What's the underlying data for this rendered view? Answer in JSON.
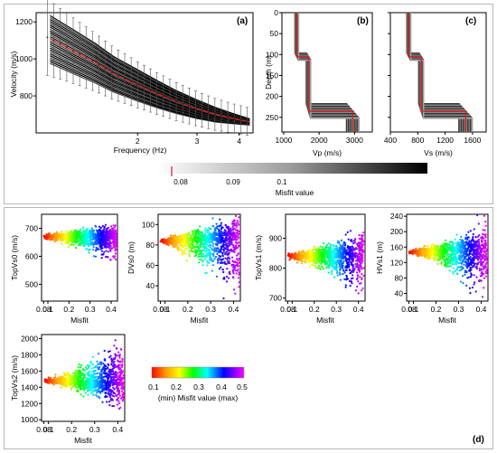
{
  "panel_a": {
    "tag": "(a)",
    "xlabel": "Frequency (Hz)",
    "ylabel": "Velocity (m/s)",
    "xticks": [
      "2",
      "3",
      "4"
    ],
    "yticks": [
      "1200",
      "1000",
      "800"
    ]
  },
  "panel_b": {
    "tag": "(b)",
    "xlabel": "Vp (m/s)",
    "ylabel": "Depth (m)",
    "xticks": [
      "1000",
      "2000",
      "3000"
    ],
    "yticks": [
      "0",
      "50",
      "100",
      "150",
      "200",
      "250"
    ]
  },
  "panel_c": {
    "tag": "(c)",
    "xlabel": "Vs (m/s)",
    "xticks": [
      "400",
      "800",
      "1200",
      "1600"
    ]
  },
  "misfit_bar": {
    "ticks": [
      "0.08",
      "0.09",
      "0.1"
    ],
    "label": "Misfit value"
  },
  "scatter_tag": "(d)",
  "color_bar": {
    "ticks": [
      "0.1",
      "0.2",
      "0.3",
      "0.4",
      "0.5"
    ],
    "label": "(min) Misfit value (max)"
  },
  "chart_data": [
    {
      "type": "line",
      "panel": "a",
      "xlabel": "Frequency (Hz)",
      "ylabel": "Velocity (m/s)",
      "x": [
        1.1,
        1.3,
        1.5,
        1.7,
        2.0,
        2.3,
        2.6,
        3.0,
        3.4,
        3.8,
        4.3
      ],
      "series": [
        {
          "values": [
            1110,
            1040,
            980,
            920,
            860,
            810,
            770,
            730,
            700,
            680,
            660
          ]
        }
      ],
      "xlim": [
        1.0,
        4.4
      ],
      "ylim": [
        600,
        1250
      ],
      "xscale": "log"
    },
    {
      "type": "line",
      "panel": "b",
      "xlabel": "Vp (m/s)",
      "ylabel": "Depth (m)",
      "xlim": [
        950,
        3500
      ],
      "ylim": [
        0,
        285
      ],
      "y_inverted": true,
      "profile_depth": [
        0,
        105,
        105,
        235,
        235,
        285
      ],
      "profile_vp": [
        1370,
        1370,
        1700,
        1700,
        2950,
        2950
      ]
    },
    {
      "type": "line",
      "panel": "c",
      "xlabel": "Vs (m/s)",
      "ylabel": "Depth (m)",
      "xlim": [
        400,
        1800
      ],
      "ylim": [
        0,
        285
      ],
      "y_inverted": true,
      "profile_depth": [
        0,
        105,
        105,
        235,
        235,
        285
      ],
      "profile_vs": [
        670,
        670,
        850,
        850,
        1500,
        1500
      ]
    },
    {
      "type": "scatter",
      "panel": "TopVs0",
      "xlabel": "Misfit",
      "ylabel": "TopVs0 (m/s)",
      "xticks": [
        "0.08",
        "0.1",
        "0.2",
        "0.3",
        "0.4"
      ],
      "yticks": [
        "500",
        "600",
        "700"
      ],
      "xlim": [
        0.07,
        0.43
      ],
      "ylim": [
        440,
        750
      ],
      "best": 670,
      "spread_low": [
        10,
        80
      ],
      "spread_high": [
        10,
        40
      ]
    },
    {
      "type": "scatter",
      "panel": "DVs0",
      "xlabel": "Misfit",
      "ylabel": "DVs0 (m)",
      "xticks": [
        "0.08",
        "0.1",
        "0.2",
        "0.3",
        "0.4"
      ],
      "yticks": [
        "40",
        "60",
        "80",
        "100"
      ],
      "xlim": [
        0.07,
        0.43
      ],
      "ylim": [
        25,
        110
      ],
      "best": 84,
      "spread_low": [
        3,
        55
      ],
      "spread_high": [
        3,
        24
      ]
    },
    {
      "type": "scatter",
      "panel": "TopVs1",
      "xlabel": "Misfit",
      "ylabel": "TopVs1 (m/s)",
      "xticks": [
        "0.08",
        "0.1",
        "0.2",
        "0.3",
        "0.4"
      ],
      "yticks": [
        "700",
        "800",
        "900"
      ],
      "xlim": [
        0.07,
        0.43
      ],
      "ylim": [
        690,
        980
      ],
      "best": 840,
      "spread_low": [
        10,
        120
      ],
      "spread_high": [
        10,
        80
      ]
    },
    {
      "type": "scatter",
      "panel": "HVs1",
      "xlabel": "Misfit",
      "ylabel": "HVs1 (m)",
      "xticks": [
        "0.08",
        "0.1",
        "0.2",
        "0.3",
        "0.4"
      ],
      "yticks": [
        "40",
        "80",
        "120",
        "160",
        "200",
        "240"
      ],
      "xlim": [
        0.07,
        0.43
      ],
      "ylim": [
        20,
        245
      ],
      "best": 148,
      "spread_low": [
        5,
        110
      ],
      "spread_high": [
        5,
        65
      ]
    },
    {
      "type": "scatter",
      "panel": "TopVs2",
      "xlabel": "Misfit",
      "ylabel": "TopVs2 (m/s)",
      "xticks": [
        "0.08",
        "0.1",
        "0.2",
        "0.3",
        "0.4"
      ],
      "yticks": [
        "1000",
        "1200",
        "1400",
        "1600",
        "1800",
        "2000"
      ],
      "xlim": [
        0.07,
        0.43
      ],
      "ylim": [
        980,
        2050
      ],
      "best": 1480,
      "spread_low": [
        20,
        330
      ],
      "spread_high": [
        20,
        450
      ]
    }
  ]
}
